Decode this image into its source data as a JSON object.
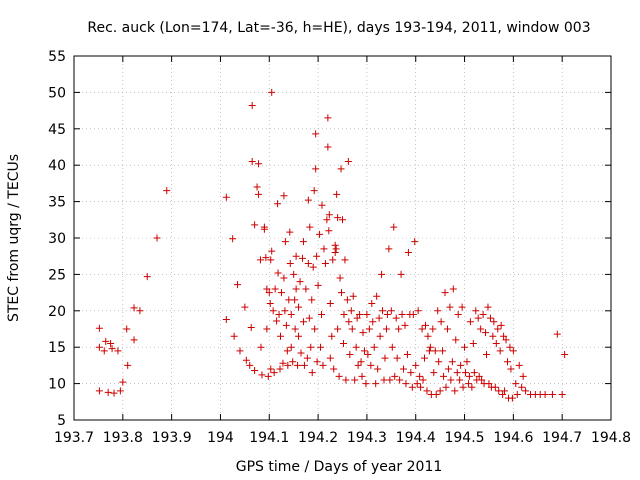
{
  "chart_data": {
    "type": "scatter",
    "title": "Rec. auck (Lon=174, Lat=-36, h=HE), days 193-194, 2011, window 003",
    "xlabel": "GPS time / Days of year 2011",
    "ylabel": "STEC from uqrg / TECUs",
    "xlim": [
      193.7,
      194.8
    ],
    "ylim": [
      5,
      55
    ],
    "xticks": [
      193.7,
      193.8,
      193.9,
      194.0,
      194.1,
      194.2,
      194.3,
      194.4,
      194.5,
      194.6,
      194.7,
      194.8
    ],
    "xtick_labels": [
      "193.7",
      "193.8",
      "193.9",
      "194",
      "194.1",
      "194.2",
      "194.3",
      "194.4",
      "194.5",
      "194.6",
      "194.7",
      "194.8"
    ],
    "yticks": [
      5,
      10,
      15,
      20,
      25,
      30,
      35,
      40,
      45,
      50,
      55
    ],
    "ytick_labels": [
      "5",
      "10",
      "15",
      "20",
      "25",
      "30",
      "35",
      "40",
      "45",
      "50",
      "55"
    ],
    "grid": true,
    "marker": "+",
    "color": "#cc0000",
    "points": [
      [
        193.752,
        17.6
      ],
      [
        193.752,
        15.0
      ],
      [
        193.752,
        9.0
      ],
      [
        193.762,
        14.5
      ],
      [
        193.765,
        15.8
      ],
      [
        193.77,
        8.8
      ],
      [
        193.775,
        15.5
      ],
      [
        193.778,
        14.8
      ],
      [
        193.782,
        8.7
      ],
      [
        193.79,
        14.5
      ],
      [
        193.795,
        9.0
      ],
      [
        193.8,
        10.2
      ],
      [
        193.808,
        17.5
      ],
      [
        193.81,
        12.5
      ],
      [
        193.823,
        16.0
      ],
      [
        193.823,
        20.4
      ],
      [
        193.835,
        20.0
      ],
      [
        193.85,
        24.7
      ],
      [
        193.87,
        30.0
      ],
      [
        193.89,
        36.5
      ],
      [
        194.012,
        35.6
      ],
      [
        194.012,
        18.8
      ],
      [
        194.025,
        29.9
      ],
      [
        194.028,
        16.5
      ],
      [
        194.035,
        23.6
      ],
      [
        194.04,
        14.5
      ],
      [
        194.05,
        20.5
      ],
      [
        194.053,
        13.2
      ],
      [
        194.06,
        12.5
      ],
      [
        194.063,
        17.7
      ],
      [
        194.065,
        40.5
      ],
      [
        194.065,
        48.2
      ],
      [
        194.07,
        31.8
      ],
      [
        194.07,
        11.8
      ],
      [
        194.075,
        37.0
      ],
      [
        194.078,
        36.0
      ],
      [
        194.078,
        40.2
      ],
      [
        194.082,
        27.0
      ],
      [
        194.083,
        15.0
      ],
      [
        194.085,
        11.2
      ],
      [
        194.09,
        31.5
      ],
      [
        194.09,
        31.2
      ],
      [
        194.093,
        27.3
      ],
      [
        194.095,
        23.0
      ],
      [
        194.095,
        17.5
      ],
      [
        194.098,
        11.0
      ],
      [
        194.1,
        22.5
      ],
      [
        194.102,
        21.0
      ],
      [
        194.103,
        12.0
      ],
      [
        194.103,
        27.0
      ],
      [
        194.105,
        50.0
      ],
      [
        194.105,
        28.2
      ],
      [
        194.108,
        20.0
      ],
      [
        194.11,
        11.5
      ],
      [
        194.112,
        23.0
      ],
      [
        194.115,
        18.6
      ],
      [
        194.117,
        34.7
      ],
      [
        194.118,
        25.2
      ],
      [
        194.12,
        19.5
      ],
      [
        194.122,
        12.0
      ],
      [
        194.123,
        16.5
      ],
      [
        194.125,
        22.5
      ],
      [
        194.128,
        12.8
      ],
      [
        194.13,
        24.5
      ],
      [
        194.13,
        35.8
      ],
      [
        194.132,
        20.0
      ],
      [
        194.133,
        29.5
      ],
      [
        194.135,
        18.0
      ],
      [
        194.137,
        14.5
      ],
      [
        194.138,
        12.5
      ],
      [
        194.14,
        21.5
      ],
      [
        194.142,
        30.8
      ],
      [
        194.143,
        26.5
      ],
      [
        194.145,
        19.5
      ],
      [
        194.145,
        15.0
      ],
      [
        194.148,
        13.0
      ],
      [
        194.15,
        25.0
      ],
      [
        194.152,
        21.5
      ],
      [
        194.153,
        17.5
      ],
      [
        194.155,
        23.0
      ],
      [
        194.155,
        27.5
      ],
      [
        194.158,
        12.5
      ],
      [
        194.16,
        20.5
      ],
      [
        194.16,
        16.5
      ],
      [
        194.163,
        24.0
      ],
      [
        194.165,
        14.2
      ],
      [
        194.168,
        27.2
      ],
      [
        194.17,
        29.5
      ],
      [
        194.17,
        18.5
      ],
      [
        194.172,
        12.5
      ],
      [
        194.175,
        23.0
      ],
      [
        194.178,
        13.5
      ],
      [
        194.18,
        26.5
      ],
      [
        194.18,
        35.2
      ],
      [
        194.182,
        19.0
      ],
      [
        194.183,
        31.5
      ],
      [
        194.185,
        15.0
      ],
      [
        194.187,
        21.5
      ],
      [
        194.188,
        11.5
      ],
      [
        194.19,
        26.0
      ],
      [
        194.192,
        36.5
      ],
      [
        194.193,
        17.5
      ],
      [
        194.195,
        44.3
      ],
      [
        194.195,
        39.5
      ],
      [
        194.197,
        27.5
      ],
      [
        194.198,
        13.0
      ],
      [
        194.2,
        23.5
      ],
      [
        194.203,
        30.5
      ],
      [
        194.205,
        15.0
      ],
      [
        194.207,
        19.5
      ],
      [
        194.208,
        34.5
      ],
      [
        194.21,
        12.5
      ],
      [
        194.212,
        28.5
      ],
      [
        194.215,
        26.5
      ],
      [
        194.218,
        32.5
      ],
      [
        194.22,
        46.5
      ],
      [
        194.22,
        42.5
      ],
      [
        194.222,
        31.0
      ],
      [
        194.223,
        33.2
      ],
      [
        194.225,
        13.5
      ],
      [
        194.225,
        21.0
      ],
      [
        194.228,
        16.5
      ],
      [
        194.23,
        27.0
      ],
      [
        194.232,
        12.0
      ],
      [
        194.235,
        29.0
      ],
      [
        194.235,
        28.0
      ],
      [
        194.237,
        28.5
      ],
      [
        194.238,
        36.0
      ],
      [
        194.24,
        17.5
      ],
      [
        194.24,
        32.8
      ],
      [
        194.243,
        11.0
      ],
      [
        194.245,
        24.5
      ],
      [
        194.247,
        39.5
      ],
      [
        194.248,
        22.5
      ],
      [
        194.25,
        32.5
      ],
      [
        194.252,
        15.5
      ],
      [
        194.253,
        19.5
      ],
      [
        194.255,
        27.0
      ],
      [
        194.257,
        10.5
      ],
      [
        194.26,
        21.5
      ],
      [
        194.262,
        40.5
      ],
      [
        194.263,
        18.5
      ],
      [
        194.265,
        14.0
      ],
      [
        194.268,
        20.0
      ],
      [
        194.27,
        17.5
      ],
      [
        194.272,
        22.0
      ],
      [
        194.275,
        10.5
      ],
      [
        194.278,
        15.0
      ],
      [
        194.28,
        19.0
      ],
      [
        194.282,
        12.5
      ],
      [
        194.285,
        19.5
      ],
      [
        194.288,
        13.0
      ],
      [
        194.29,
        11.0
      ],
      [
        194.292,
        17.0
      ],
      [
        194.295,
        14.5
      ],
      [
        194.298,
        10.0
      ],
      [
        194.3,
        19.5
      ],
      [
        194.302,
        14.0
      ],
      [
        194.305,
        17.5
      ],
      [
        194.308,
        12.5
      ],
      [
        194.31,
        21.0
      ],
      [
        194.312,
        18.5
      ],
      [
        194.315,
        15.0
      ],
      [
        194.318,
        10.0
      ],
      [
        194.32,
        22.0
      ],
      [
        194.322,
        12.0
      ],
      [
        194.325,
        19.0
      ],
      [
        194.327,
        16.5
      ],
      [
        194.33,
        25.0
      ],
      [
        194.332,
        20.0
      ],
      [
        194.335,
        10.5
      ],
      [
        194.337,
        13.5
      ],
      [
        194.34,
        17.5
      ],
      [
        194.342,
        19.5
      ],
      [
        194.345,
        28.5
      ],
      [
        194.347,
        10.5
      ],
      [
        194.35,
        20.0
      ],
      [
        194.352,
        15.0
      ],
      [
        194.355,
        31.5
      ],
      [
        194.357,
        11.0
      ],
      [
        194.36,
        19.0
      ],
      [
        194.362,
        13.5
      ],
      [
        194.365,
        17.5
      ],
      [
        194.367,
        10.5
      ],
      [
        194.37,
        25.0
      ],
      [
        194.372,
        19.5
      ],
      [
        194.375,
        12.0
      ],
      [
        194.378,
        18.0
      ],
      [
        194.38,
        10.0
      ],
      [
        194.383,
        14.0
      ],
      [
        194.385,
        28.0
      ],
      [
        194.388,
        19.5
      ],
      [
        194.39,
        11.5
      ],
      [
        194.393,
        9.5
      ],
      [
        194.395,
        19.5
      ],
      [
        194.398,
        29.5
      ],
      [
        194.4,
        12.5
      ],
      [
        194.403,
        10.0
      ],
      [
        194.405,
        20.0
      ],
      [
        194.408,
        11.0
      ],
      [
        194.41,
        9.5
      ],
      [
        194.413,
        17.5
      ],
      [
        194.415,
        10.5
      ],
      [
        194.418,
        13.5
      ],
      [
        194.42,
        18.0
      ],
      [
        194.423,
        9.0
      ],
      [
        194.425,
        16.5
      ],
      [
        194.428,
        14.5
      ],
      [
        194.43,
        15.0
      ],
      [
        194.432,
        8.5
      ],
      [
        194.435,
        17.5
      ],
      [
        194.437,
        11.5
      ],
      [
        194.44,
        14.5
      ],
      [
        194.442,
        8.5
      ],
      [
        194.445,
        20.0
      ],
      [
        194.447,
        13.0
      ],
      [
        194.45,
        9.0
      ],
      [
        194.452,
        18.5
      ],
      [
        194.455,
        14.5
      ],
      [
        194.457,
        11.0
      ],
      [
        194.46,
        22.5
      ],
      [
        194.462,
        9.5
      ],
      [
        194.465,
        17.5
      ],
      [
        194.467,
        12.0
      ],
      [
        194.47,
        20.5
      ],
      [
        194.472,
        10.5
      ],
      [
        194.475,
        13.0
      ],
      [
        194.477,
        23.0
      ],
      [
        194.48,
        9.0
      ],
      [
        194.482,
        16.0
      ],
      [
        194.485,
        11.5
      ],
      [
        194.487,
        19.5
      ],
      [
        194.49,
        10.5
      ],
      [
        194.492,
        12.5
      ],
      [
        194.495,
        20.5
      ],
      [
        194.497,
        9.5
      ],
      [
        194.5,
        15.0
      ],
      [
        194.502,
        11.5
      ],
      [
        194.505,
        13.0
      ],
      [
        194.508,
        10.0
      ],
      [
        194.51,
        11.0
      ],
      [
        194.512,
        18.5
      ],
      [
        194.515,
        9.5
      ],
      [
        194.518,
        15.5
      ],
      [
        194.52,
        11.5
      ],
      [
        194.523,
        20.0
      ],
      [
        194.525,
        10.5
      ],
      [
        194.528,
        19.0
      ],
      [
        194.53,
        11.0
      ],
      [
        194.533,
        17.5
      ],
      [
        194.535,
        10.5
      ],
      [
        194.538,
        19.5
      ],
      [
        194.54,
        10.0
      ],
      [
        194.543,
        17.0
      ],
      [
        194.545,
        14.0
      ],
      [
        194.548,
        20.5
      ],
      [
        194.55,
        10.0
      ],
      [
        194.553,
        19.0
      ],
      [
        194.555,
        9.5
      ],
      [
        194.558,
        16.5
      ],
      [
        194.56,
        18.5
      ],
      [
        194.563,
        9.5
      ],
      [
        194.565,
        15.5
      ],
      [
        194.568,
        17.5
      ],
      [
        194.57,
        9.0
      ],
      [
        194.573,
        14.5
      ],
      [
        194.575,
        18.0
      ],
      [
        194.578,
        8.5
      ],
      [
        194.58,
        16.5
      ],
      [
        194.582,
        9.0
      ],
      [
        194.585,
        16.0
      ],
      [
        194.588,
        13.0
      ],
      [
        194.59,
        8.0
      ],
      [
        194.593,
        15.0
      ],
      [
        194.595,
        12.0
      ],
      [
        194.598,
        8.0
      ],
      [
        194.6,
        14.5
      ],
      [
        194.605,
        10.0
      ],
      [
        194.608,
        8.5
      ],
      [
        194.612,
        12.5
      ],
      [
        194.617,
        9.5
      ],
      [
        194.62,
        11.0
      ],
      [
        194.625,
        9.0
      ],
      [
        194.635,
        8.5
      ],
      [
        194.645,
        8.5
      ],
      [
        194.655,
        8.5
      ],
      [
        194.665,
        8.5
      ],
      [
        194.68,
        8.5
      ],
      [
        194.69,
        16.8
      ],
      [
        194.7,
        8.5
      ],
      [
        194.705,
        14.0
      ]
    ]
  }
}
